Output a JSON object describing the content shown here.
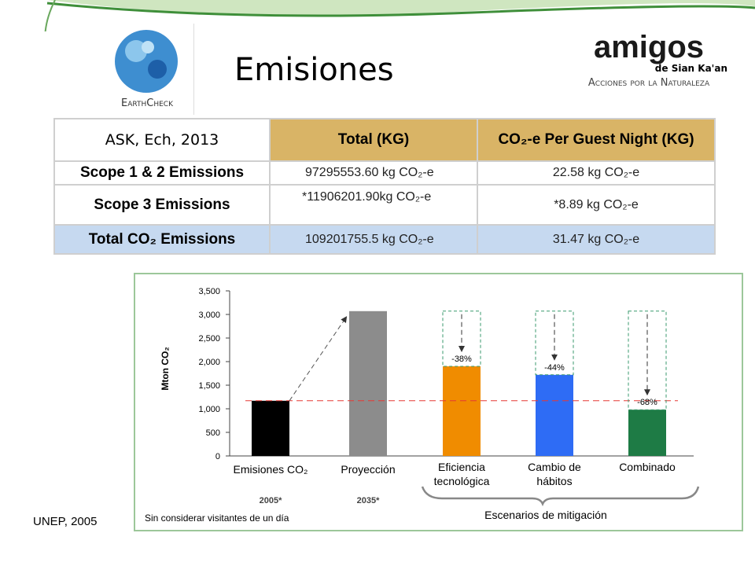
{
  "header": {
    "title": "Emisiones"
  },
  "logos": {
    "left": "EarthCheck",
    "right": {
      "name": "amigos",
      "place": "de Sian Ka'an",
      "tagline": "Acciones por la Naturaleza"
    }
  },
  "table": {
    "caption": "ASK, Ech, 2013",
    "columns": [
      "Total (KG)",
      "CO₂-e Per Guest Night (KG)"
    ],
    "rows": [
      [
        "Scope 1 & 2 Emissions",
        "97295553.60 kg CO₂-e",
        "22.58 kg CO₂-e"
      ],
      [
        "Scope 3 Emissions",
        "*11906201.90kg CO₂-e",
        "*8.89 kg CO₂-e"
      ],
      [
        "Total CO₂ Emissions",
        "109201755.5 kg CO₂-e",
        "31.47 kg CO₂-e"
      ]
    ]
  },
  "chart_data": {
    "type": "bar",
    "ylabel": "Mton CO₂",
    "categories": [
      "Emisiones CO₂",
      "Proyección",
      "Eficiencia tecnológica",
      "Cambio de hábitos",
      "Combinado"
    ],
    "years": [
      "2005*",
      "2035*",
      null,
      null,
      null
    ],
    "values": [
      1170,
      3070,
      1900,
      1720,
      980
    ],
    "colors": [
      "#000000",
      "#8c8c8c",
      "#f08c00",
      "#2e6cf5",
      "#1e7b45"
    ],
    "annotations": [
      null,
      null,
      "-38%",
      "-44%",
      "-68%"
    ],
    "ylim": [
      0,
      3500
    ],
    "yticks": [
      0,
      500,
      {
        "value": 1000,
        "label": "1,000"
      },
      {
        "value": 1500,
        "label": "1,500"
      },
      {
        "value": 2000,
        "label": "2,000"
      },
      {
        "value": 2500,
        "label": "2,500"
      },
      {
        "value": 3000,
        "label": "3,000"
      },
      {
        "value": 3500,
        "label": "3,500"
      }
    ],
    "group_label": "Escenarios de mitigación",
    "note": "Sin considerar visitantes de un día"
  },
  "source": "UNEP, 2005"
}
